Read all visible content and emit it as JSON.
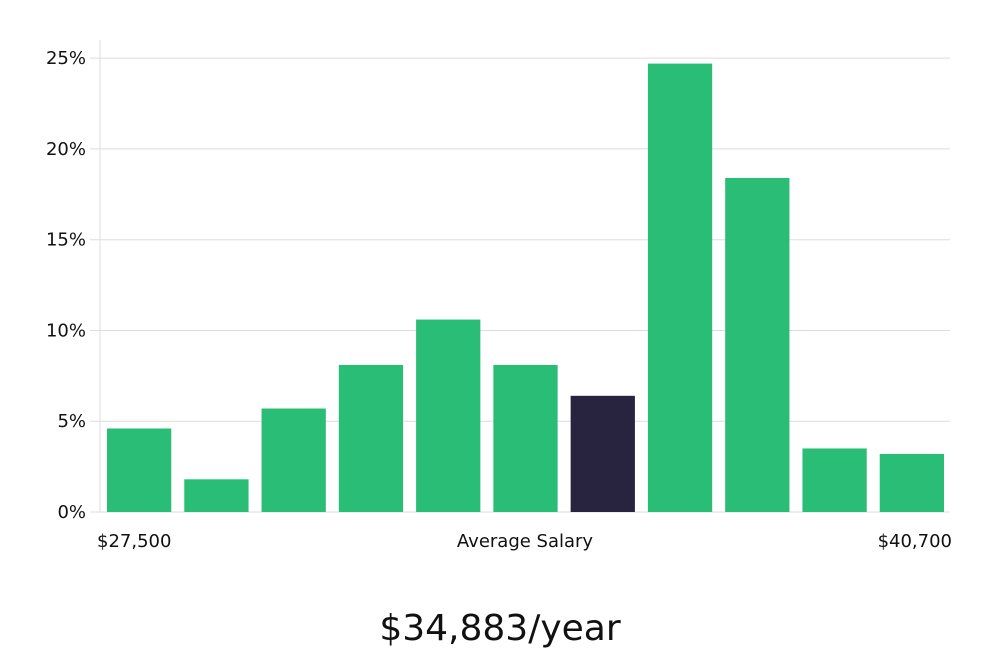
{
  "chart_data": {
    "type": "bar",
    "categories": [
      "1",
      "2",
      "3",
      "4",
      "5",
      "6",
      "7",
      "8",
      "9",
      "10",
      "11"
    ],
    "values": [
      4.6,
      1.8,
      5.7,
      8.1,
      10.6,
      8.1,
      6.4,
      24.7,
      18.4,
      3.5,
      3.2
    ],
    "highlight_index": 6,
    "ylim": [
      0,
      26
    ],
    "yticks": [
      {
        "value": 0,
        "label": "0%"
      },
      {
        "value": 5,
        "label": "5%"
      },
      {
        "value": 10,
        "label": "10%"
      },
      {
        "value": 15,
        "label": "15%"
      },
      {
        "value": 20,
        "label": "20%"
      },
      {
        "value": 25,
        "label": "25%"
      }
    ],
    "x_min_label": "$27,500",
    "xlabel": "Average Salary",
    "x_max_label": "$40,700",
    "grid": true,
    "colors": {
      "bar": "#2abd76",
      "highlight": "#28233f",
      "grid": "#dddddd"
    }
  },
  "average_salary_text": "$34,883/year"
}
